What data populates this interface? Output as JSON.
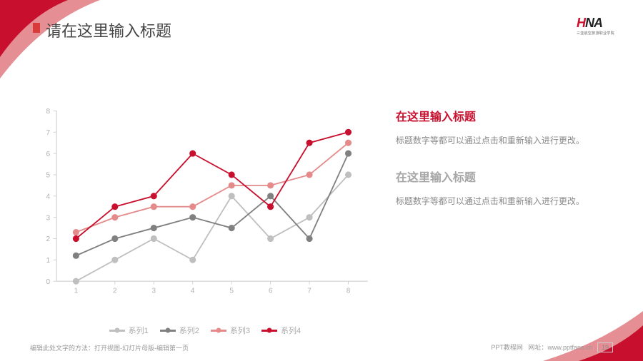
{
  "slide": {
    "title": "请在这里输入标题",
    "logo_text": "HNA",
    "logo_subtitle": "三亚航空旅游职业学院"
  },
  "chart": {
    "type": "line",
    "categories": [
      "1",
      "2",
      "3",
      "4",
      "5",
      "6",
      "7",
      "8"
    ],
    "xlim": [
      0.5,
      8.5
    ],
    "ylim": [
      0,
      8
    ],
    "ytick_step": 1,
    "axis_color": "#cfcfcf",
    "grid_color": "#e6e6e6",
    "tick_label_color": "#b0b0b0",
    "tick_label_fontsize": 11,
    "background_color": "#ffffff",
    "line_width": 2,
    "marker_size": 5,
    "series": [
      {
        "name": "系列1",
        "color": "#bfbfbf",
        "values": [
          0.0,
          1.0,
          2.0,
          1.0,
          4.0,
          2.0,
          3.0,
          5.0
        ]
      },
      {
        "name": "系列2",
        "color": "#808080",
        "values": [
          1.2,
          2.0,
          2.5,
          3.0,
          2.5,
          4.0,
          2.0,
          6.0
        ]
      },
      {
        "name": "系列3",
        "color": "#e48a8a",
        "values": [
          2.3,
          3.0,
          3.5,
          3.5,
          4.5,
          4.5,
          5.0,
          6.5
        ]
      },
      {
        "name": "系列4",
        "color": "#c8102e",
        "values": [
          2.0,
          3.5,
          4.0,
          6.0,
          5.0,
          3.5,
          6.5,
          7.0
        ]
      }
    ]
  },
  "sections": [
    {
      "title": "在这里输入标题",
      "title_color": "#c8102e",
      "body": "标题数字等都可以通过点击和重新输入进行更改。"
    },
    {
      "title": "在这里输入标题",
      "title_color": "#a6a6a6",
      "body": "标题数字等都可以通过点击和重新输入进行更改。"
    }
  ],
  "footer": {
    "left": "编辑此处文字的方法：打开视图-幻灯片母版-编辑第一页",
    "right_label": "PPT教程网",
    "right_url_label": "网址：",
    "right_url": "www.pptfans.cn",
    "page": "19"
  },
  "accent_color": "#c8102e"
}
